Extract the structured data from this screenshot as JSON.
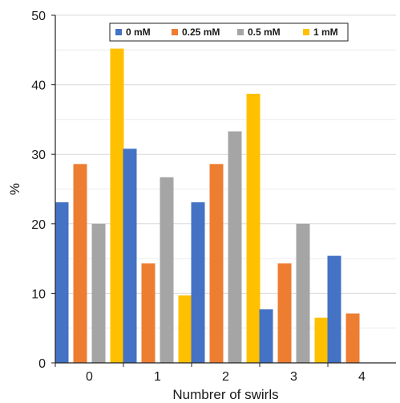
{
  "chart_data": {
    "type": "bar",
    "title": "",
    "xlabel": "Numbrer of swirls",
    "ylabel": "%",
    "categories": [
      "0",
      "1",
      "2",
      "3",
      "4"
    ],
    "ylim": [
      0,
      50
    ],
    "yticks": [
      "0",
      "10",
      "20",
      "30",
      "40",
      "50"
    ],
    "grid": "horizontal",
    "legend_position": "top-right",
    "series": [
      {
        "name": "0 mM",
        "color": "#4472C4",
        "values": [
          23.1,
          30.8,
          23.1,
          7.7,
          15.4
        ]
      },
      {
        "name": "0.25 mM",
        "color": "#ED7D31",
        "values": [
          28.6,
          14.3,
          28.6,
          14.3,
          7.1
        ]
      },
      {
        "name": "0.5 mM",
        "color": "#A5A5A5",
        "values": [
          20.0,
          26.7,
          33.3,
          20.0,
          0
        ]
      },
      {
        "name": "1 mM",
        "color": "#FFC000",
        "values": [
          45.2,
          9.7,
          38.7,
          6.5,
          0
        ]
      }
    ]
  }
}
